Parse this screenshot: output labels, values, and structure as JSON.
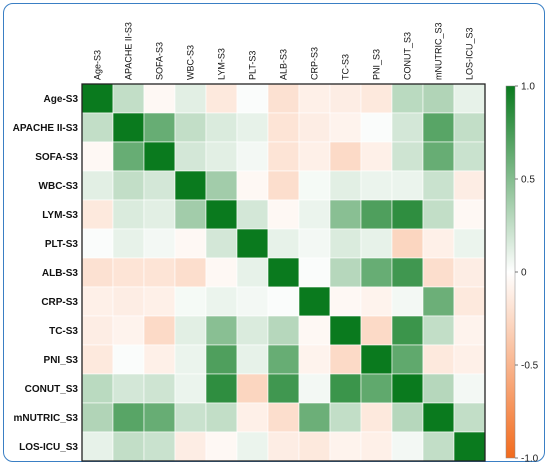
{
  "chart_data": {
    "type": "heatmap",
    "labels_row": [
      "Age-S3",
      "APACHE II-S3",
      "SOFA-S3",
      "WBC-S3",
      "LYM-S3",
      "PLT-S3",
      "ALB-S3",
      "CRP-S3",
      "TC-S3",
      "PNI_S3",
      "CONUT_S3",
      "mNUTRIC_S3",
      "LOS-ICU_S3"
    ],
    "labels_col": [
      "Age-S3",
      "APACHE II-S3",
      "SOFA-S3",
      "WBC-S3",
      "LYM-S3",
      "PLT-S3",
      "ALB-S3",
      "CRP-S3",
      "TC-S3",
      "PNI_S3",
      "CONUT_S3",
      "mNUTRIC_S3",
      "LOS-ICU_S3"
    ],
    "values": [
      [
        1.0,
        0.25,
        -0.05,
        0.12,
        -0.15,
        0.02,
        -0.2,
        -0.1,
        -0.12,
        -0.15,
        0.28,
        0.32,
        0.1
      ],
      [
        0.25,
        1.0,
        0.62,
        0.25,
        0.15,
        0.1,
        -0.18,
        -0.12,
        -0.08,
        0.02,
        0.18,
        0.68,
        0.25
      ],
      [
        -0.05,
        0.62,
        1.0,
        0.18,
        0.12,
        0.05,
        -0.18,
        -0.1,
        -0.25,
        -0.1,
        0.2,
        0.62,
        0.22
      ],
      [
        0.12,
        0.25,
        0.18,
        1.0,
        0.38,
        -0.05,
        -0.22,
        0.04,
        0.12,
        0.08,
        0.08,
        0.22,
        -0.12
      ],
      [
        -0.15,
        0.15,
        0.12,
        0.38,
        1.0,
        0.18,
        -0.05,
        0.08,
        0.48,
        0.72,
        0.85,
        0.25,
        -0.05
      ],
      [
        0.02,
        0.1,
        0.05,
        -0.05,
        0.18,
        1.0,
        0.1,
        0.05,
        0.15,
        0.1,
        -0.28,
        -0.1,
        0.08
      ],
      [
        -0.2,
        -0.18,
        -0.18,
        -0.22,
        -0.05,
        0.1,
        1.0,
        0.02,
        0.3,
        0.62,
        0.78,
        -0.22,
        -0.12
      ],
      [
        -0.1,
        -0.12,
        -0.1,
        0.04,
        0.08,
        0.05,
        0.02,
        1.0,
        -0.05,
        -0.08,
        0.05,
        0.6,
        -0.15
      ],
      [
        -0.12,
        -0.08,
        -0.25,
        0.12,
        0.48,
        0.15,
        0.3,
        -0.05,
        1.0,
        -0.25,
        0.8,
        0.25,
        -0.08
      ],
      [
        -0.15,
        0.02,
        -0.1,
        0.08,
        0.72,
        0.1,
        0.62,
        -0.08,
        -0.25,
        1.0,
        0.65,
        -0.15,
        -0.1
      ],
      [
        0.28,
        0.18,
        0.2,
        0.08,
        0.85,
        -0.28,
        0.78,
        0.05,
        0.8,
        0.65,
        1.0,
        0.3,
        0.05
      ],
      [
        0.32,
        0.68,
        0.62,
        0.22,
        0.25,
        -0.1,
        -0.22,
        0.6,
        0.25,
        -0.15,
        0.3,
        1.0,
        0.25
      ],
      [
        0.1,
        0.25,
        0.22,
        -0.12,
        -0.05,
        0.08,
        -0.12,
        -0.15,
        -0.08,
        -0.1,
        0.05,
        0.25,
        1.0
      ]
    ],
    "colorbar": {
      "min": -1.0,
      "max": 1.0,
      "ticks": [
        "1.0",
        "0.5",
        "0",
        "-0.5",
        "-1.0"
      ]
    },
    "colors": {
      "positive": "#0a7a1e",
      "neutral": "#ffffff",
      "negative": "#f26b1d"
    },
    "title": "",
    "xlabel": "",
    "ylabel": ""
  }
}
